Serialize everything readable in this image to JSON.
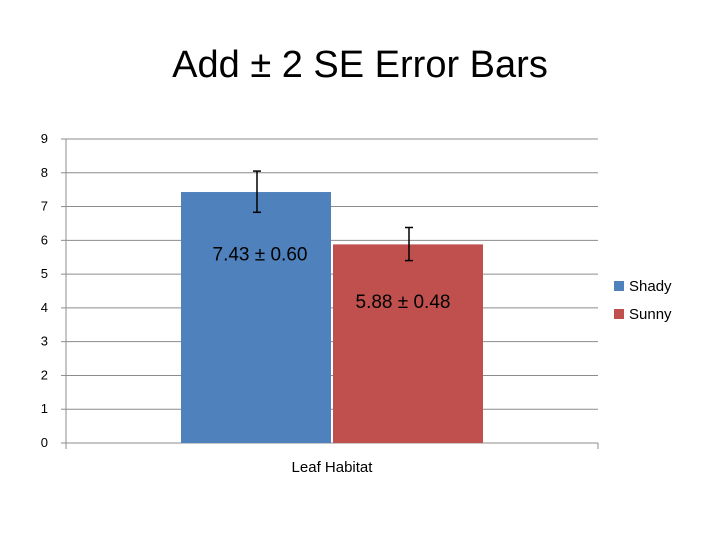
{
  "slide": {
    "title": "Add ± 2 SE Error Bars"
  },
  "chart_data": {
    "type": "bar",
    "categories": [
      "Leaf Habitat"
    ],
    "series": [
      {
        "name": "Shady",
        "values": [
          7.43
        ],
        "error": [
          1.2
        ],
        "label": "7.43 ± 0.60",
        "color": "#4f81bd"
      },
      {
        "name": "Sunny",
        "values": [
          5.88
        ],
        "error": [
          0.96
        ],
        "label": "5.88 ± 0.48",
        "color": "#c0504d"
      }
    ],
    "xlabel": "Leaf Habitat",
    "ylabel": "",
    "ylim": [
      0,
      9
    ],
    "yticks": [
      0,
      1,
      2,
      3,
      4,
      5,
      6,
      7,
      8,
      9
    ],
    "grid": true,
    "legend_position": "right"
  }
}
